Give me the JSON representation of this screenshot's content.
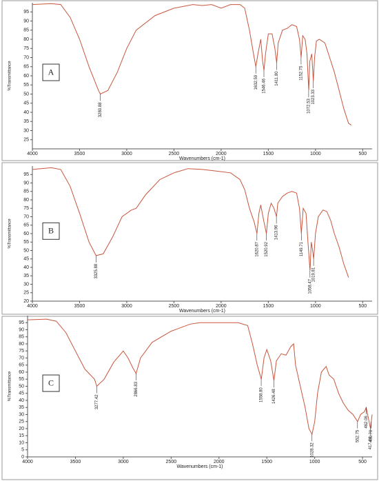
{
  "chart_data": [
    {
      "type": "line",
      "panel": "A",
      "x_label": "Wavenumbers (cm-1)",
      "y_label": "%Transmittance",
      "color": "#c8553d",
      "xlim": [
        4000,
        400
      ],
      "ylim": [
        20,
        100
      ],
      "xticks": [
        4000,
        3500,
        3000,
        2500,
        2000,
        1500,
        1000,
        500
      ],
      "yticks": [
        25,
        30,
        35,
        40,
        45,
        50,
        55,
        60,
        65,
        70,
        75,
        80,
        85,
        90,
        95
      ],
      "x": [
        4000,
        3800,
        3700,
        3600,
        3500,
        3400,
        3300,
        3280,
        3200,
        3100,
        3000,
        2900,
        2700,
        2500,
        2300,
        2200,
        2100,
        2000,
        1900,
        1800,
        1750,
        1700,
        1650,
        1632,
        1610,
        1580,
        1560,
        1546,
        1530,
        1500,
        1460,
        1430,
        1411,
        1395,
        1350,
        1300,
        1250,
        1200,
        1170,
        1152,
        1135,
        1110,
        1090,
        1072,
        1060,
        1040,
        1023,
        1010,
        990,
        960,
        900,
        850,
        800,
        750,
        700,
        650,
        620
      ],
      "values": [
        99,
        99.5,
        99,
        92,
        80,
        65,
        52,
        50,
        52,
        62,
        75,
        85,
        93,
        97,
        99,
        98.5,
        99,
        97,
        99,
        99,
        97,
        85,
        70,
        65,
        72,
        80,
        68,
        63,
        72,
        83,
        83,
        75,
        67,
        78,
        85,
        86,
        88,
        87,
        80,
        70,
        82,
        80,
        72,
        52,
        68,
        72,
        57,
        70,
        79,
        80,
        78,
        70,
        62,
        52,
        42,
        34,
        33
      ],
      "peaks": [
        {
          "x": 3280.88,
          "y": 50,
          "label": "3280.88"
        },
        {
          "x": 1632.59,
          "y": 65,
          "label": "1632.59"
        },
        {
          "x": 1546.46,
          "y": 63,
          "label": "1546.46"
        },
        {
          "x": 1411.8,
          "y": 67,
          "label": "1411.80"
        },
        {
          "x": 1152.75,
          "y": 70,
          "label": "1152.75"
        },
        {
          "x": 1072.53,
          "y": 52,
          "label": "1072.53"
        },
        {
          "x": 1023.33,
          "y": 57,
          "label": "1023.33"
        }
      ]
    },
    {
      "type": "line",
      "panel": "B",
      "x_label": "Wavenumbers (cm-1)",
      "y_label": "%Transmittance",
      "color": "#c8553d",
      "xlim": [
        4000,
        400
      ],
      "ylim": [
        20,
        100
      ],
      "xticks": [
        4000,
        3500,
        3000,
        2500,
        2000,
        1500,
        1000,
        500
      ],
      "yticks": [
        20,
        25,
        30,
        35,
        40,
        45,
        50,
        55,
        60,
        65,
        70,
        75,
        80,
        85,
        90,
        95
      ],
      "x": [
        4000,
        3800,
        3700,
        3600,
        3500,
        3400,
        3325,
        3250,
        3150,
        3050,
        2950,
        2900,
        2800,
        2650,
        2500,
        2350,
        2200,
        2050,
        1900,
        1800,
        1750,
        1700,
        1650,
        1620,
        1600,
        1580,
        1550,
        1520,
        1500,
        1470,
        1440,
        1413,
        1400,
        1350,
        1300,
        1250,
        1200,
        1170,
        1150,
        1130,
        1100,
        1080,
        1058,
        1045,
        1030,
        1019,
        1000,
        970,
        920,
        880,
        840,
        800,
        750,
        700,
        650
      ],
      "values": [
        98,
        99,
        98,
        88,
        72,
        55,
        47,
        48,
        58,
        70,
        74,
        75,
        83,
        92,
        96,
        98.5,
        98,
        97,
        96,
        92,
        86,
        75,
        67,
        60,
        72,
        77,
        68,
        60,
        72,
        78,
        75,
        70,
        78,
        82,
        84,
        85,
        84,
        75,
        60,
        75,
        72,
        55,
        38,
        55,
        50,
        45,
        60,
        70,
        74,
        73,
        68,
        60,
        52,
        42,
        34
      ],
      "peaks": [
        {
          "x": 3325.88,
          "y": 47,
          "label": "3325.88"
        },
        {
          "x": 1620.87,
          "y": 60,
          "label": "1620.87"
        },
        {
          "x": 1520.92,
          "y": 60,
          "label": "1520.92"
        },
        {
          "x": 1413.96,
          "y": 70,
          "label": "1413.96"
        },
        {
          "x": 1149.71,
          "y": 60,
          "label": "1149.71"
        },
        {
          "x": 1058.47,
          "y": 38,
          "label": "1058.47"
        },
        {
          "x": 1019.81,
          "y": 45,
          "label": "1019.81"
        }
      ]
    },
    {
      "type": "line",
      "panel": "C",
      "x_label": "Wavenumbers (cm-1)",
      "y_label": "%Transmittance",
      "color": "#c8553d",
      "xlim": [
        4000,
        400
      ],
      "ylim": [
        0,
        100
      ],
      "xticks": [
        4000,
        3500,
        3000,
        2500,
        2000,
        1500,
        1000,
        500
      ],
      "yticks": [
        0,
        5,
        10,
        15,
        20,
        25,
        30,
        35,
        40,
        45,
        50,
        55,
        60,
        65,
        70,
        75,
        80,
        85,
        90,
        95
      ],
      "x": [
        4000,
        3800,
        3700,
        3600,
        3500,
        3400,
        3300,
        3277,
        3200,
        3100,
        3000,
        2950,
        2900,
        2866,
        2820,
        2700,
        2500,
        2300,
        2200,
        2000,
        1800,
        1700,
        1650,
        1600,
        1558,
        1530,
        1500,
        1460,
        1426,
        1400,
        1350,
        1300,
        1250,
        1220,
        1200,
        1150,
        1100,
        1060,
        1028,
        1000,
        970,
        930,
        880,
        850,
        800,
        750,
        700,
        650,
        600,
        552,
        520,
        480,
        462,
        440,
        417,
        409,
        400
      ],
      "values": [
        97,
        97.5,
        96,
        88,
        75,
        62,
        55,
        50,
        55,
        67,
        75,
        70,
        63,
        59,
        70,
        81,
        89,
        94,
        95,
        95,
        95,
        93,
        80,
        65,
        55,
        70,
        76,
        68,
        54,
        68,
        73,
        72,
        78,
        80,
        65,
        50,
        35,
        20,
        16,
        25,
        45,
        60,
        64,
        58,
        55,
        45,
        38,
        33,
        30,
        25,
        30,
        32,
        35,
        28,
        20,
        25,
        30
      ],
      "peaks": [
        {
          "x": 3277.42,
          "y": 50,
          "label": "3277.42"
        },
        {
          "x": 2866.83,
          "y": 59,
          "label": "2866.83"
        },
        {
          "x": 1558.8,
          "y": 55,
          "label": "1558.80"
        },
        {
          "x": 1426.48,
          "y": 54,
          "label": "1426.48"
        },
        {
          "x": 1028.32,
          "y": 16,
          "label": "1028.32"
        },
        {
          "x": 552.75,
          "y": 25,
          "label": "552.75"
        },
        {
          "x": 417.44,
          "y": 20,
          "label": "417.44"
        },
        {
          "x": 409.7,
          "y": 25,
          "label": "409.70"
        },
        {
          "x": 462.06,
          "y": 35,
          "label": "462.06"
        }
      ]
    }
  ]
}
